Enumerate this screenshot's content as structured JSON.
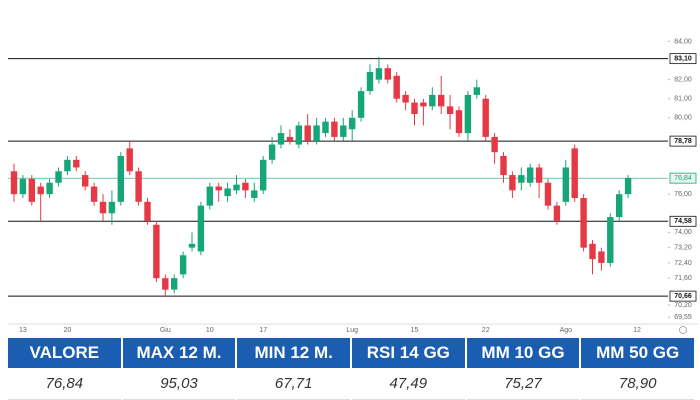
{
  "chart_data": {
    "type": "candlestick",
    "categories": [
      null,
      "13",
      null,
      null,
      null,
      null,
      "20",
      null,
      null,
      null,
      null,
      null,
      null,
      null,
      null,
      null,
      null,
      "Giu",
      null,
      null,
      null,
      null,
      "10",
      null,
      null,
      null,
      null,
      null,
      "17",
      null,
      null,
      null,
      null,
      null,
      null,
      null,
      null,
      null,
      "Lug",
      null,
      null,
      null,
      null,
      null,
      null,
      "15",
      null,
      null,
      null,
      null,
      null,
      null,
      null,
      "22",
      null,
      null,
      null,
      null,
      null,
      null,
      null,
      null,
      "Ago",
      null,
      null,
      null,
      null,
      null,
      null,
      null,
      "12"
    ],
    "open": [
      77.2,
      76.0,
      76.8,
      76.4,
      76.0,
      76.6,
      77.2,
      77.8,
      77.0,
      76.4,
      75.6,
      75.0,
      75.6,
      78.4,
      77.2,
      75.6,
      74.4,
      71.6,
      71.0,
      71.8,
      73.2,
      73.0,
      75.4,
      76.4,
      75.9,
      76.2,
      76.6,
      75.8,
      76.2,
      77.8,
      78.6,
      79.0,
      78.6,
      79.6,
      78.8,
      79.2,
      79.8,
      79.0,
      79.4,
      80.0,
      81.4,
      82.0,
      82.6,
      82.2,
      81.2,
      80.8,
      80.8,
      80.6,
      81.2,
      80.6,
      80.4,
      79.2,
      81.2,
      81.0,
      79.0,
      78.0,
      77.0,
      76.6,
      76.6,
      77.4,
      76.6,
      75.4,
      75.6,
      78.4,
      75.8,
      73.4,
      73.0,
      72.4,
      74.8,
      76.0,
      null
    ],
    "high": [
      77.6,
      77.0,
      77.0,
      76.6,
      76.8,
      77.4,
      78.0,
      78.0,
      77.2,
      76.6,
      76.0,
      76.2,
      78.2,
      78.8,
      77.4,
      75.8,
      74.6,
      71.8,
      71.8,
      73.0,
      74.0,
      75.6,
      76.6,
      76.6,
      76.6,
      77.0,
      76.8,
      76.6,
      78.0,
      79.0,
      79.6,
      79.4,
      79.8,
      80.2,
      80.0,
      80.0,
      80.0,
      80.0,
      80.4,
      81.6,
      82.8,
      83.2,
      82.8,
      82.4,
      81.4,
      81.0,
      81.0,
      81.6,
      82.2,
      81.2,
      80.6,
      81.4,
      82.0,
      81.2,
      79.2,
      78.2,
      77.2,
      77.4,
      77.6,
      77.6,
      76.8,
      75.6,
      77.8,
      78.6,
      76.0,
      73.6,
      73.2,
      75.0,
      76.2,
      77.0,
      null
    ],
    "low": [
      75.6,
      75.8,
      75.4,
      74.6,
      75.8,
      76.4,
      77.0,
      77.2,
      76.2,
      75.4,
      74.6,
      74.4,
      75.4,
      77.0,
      75.4,
      74.4,
      71.4,
      70.6,
      70.8,
      71.6,
      73.0,
      72.8,
      75.2,
      75.6,
      75.6,
      76.0,
      75.8,
      75.6,
      76.0,
      77.6,
      78.4,
      78.6,
      78.4,
      78.6,
      78.6,
      79.0,
      78.8,
      78.8,
      78.8,
      79.8,
      81.2,
      81.8,
      81.8,
      80.8,
      80.4,
      79.6,
      79.6,
      80.4,
      80.2,
      79.4,
      79.0,
      78.8,
      81.0,
      78.8,
      77.6,
      76.6,
      75.8,
      76.2,
      76.4,
      75.8,
      75.2,
      74.4,
      75.4,
      75.6,
      73.0,
      71.8,
      72.0,
      72.2,
      74.6,
      75.8,
      null
    ],
    "close": [
      76.0,
      76.8,
      75.6,
      76.0,
      76.6,
      77.2,
      77.8,
      77.4,
      76.4,
      75.6,
      75.0,
      75.6,
      78.0,
      77.2,
      75.6,
      74.6,
      71.6,
      71.0,
      71.6,
      72.8,
      73.4,
      75.4,
      76.4,
      76.2,
      76.3,
      76.5,
      76.2,
      76.2,
      77.8,
      78.6,
      79.2,
      78.8,
      79.6,
      78.8,
      79.6,
      79.8,
      79.0,
      79.6,
      80.0,
      81.4,
      82.4,
      82.6,
      82.0,
      81.0,
      80.8,
      80.2,
      80.6,
      81.2,
      80.6,
      80.2,
      79.2,
      81.2,
      81.6,
      79.0,
      78.2,
      77.0,
      76.2,
      77.0,
      77.4,
      76.6,
      75.4,
      74.6,
      77.4,
      75.8,
      73.2,
      72.6,
      72.4,
      74.8,
      76.0,
      76.84,
      null
    ],
    "up_color": "#17a57a",
    "down_color": "#e63946",
    "ylim": [
      69.2,
      84.6
    ],
    "yticks": [
      {
        "value": 84,
        "label": "84,00"
      },
      {
        "value": 83.1,
        "label": "83,10"
      },
      {
        "value": 82,
        "label": "82,00"
      },
      {
        "value": 81,
        "label": "81,00"
      },
      {
        "value": 80,
        "label": "80,00"
      },
      {
        "value": 78.78,
        "label": "78,78"
      },
      {
        "value": 76.84,
        "label": "76,84"
      },
      {
        "value": 76,
        "label": "76,00"
      },
      {
        "value": 74.58,
        "label": "74,58"
      },
      {
        "value": 74,
        "label": "74,00"
      },
      {
        "value": 73.2,
        "label": "73,20"
      },
      {
        "value": 72.4,
        "label": "72,40"
      },
      {
        "value": 71.6,
        "label": "71,60"
      },
      {
        "value": 70.66,
        "label": "70,66"
      },
      {
        "value": 70.2,
        "label": "70,20"
      },
      {
        "value": 69.55,
        "label": "69,55"
      }
    ],
    "hlines": [
      83.1,
      78.78,
      74.58,
      70.66
    ],
    "last_value": 76.84,
    "last_color": "#17a57a",
    "grid": false
  },
  "table": {
    "headers": [
      "VALORE",
      "MAX 12 M.",
      "MIN 12 M.",
      "RSI 14 GG",
      "MM 10 GG",
      "MM 50 GG"
    ],
    "values": [
      "76,84",
      "95,03",
      "67,71",
      "47,49",
      "75,27",
      "78,90"
    ]
  }
}
